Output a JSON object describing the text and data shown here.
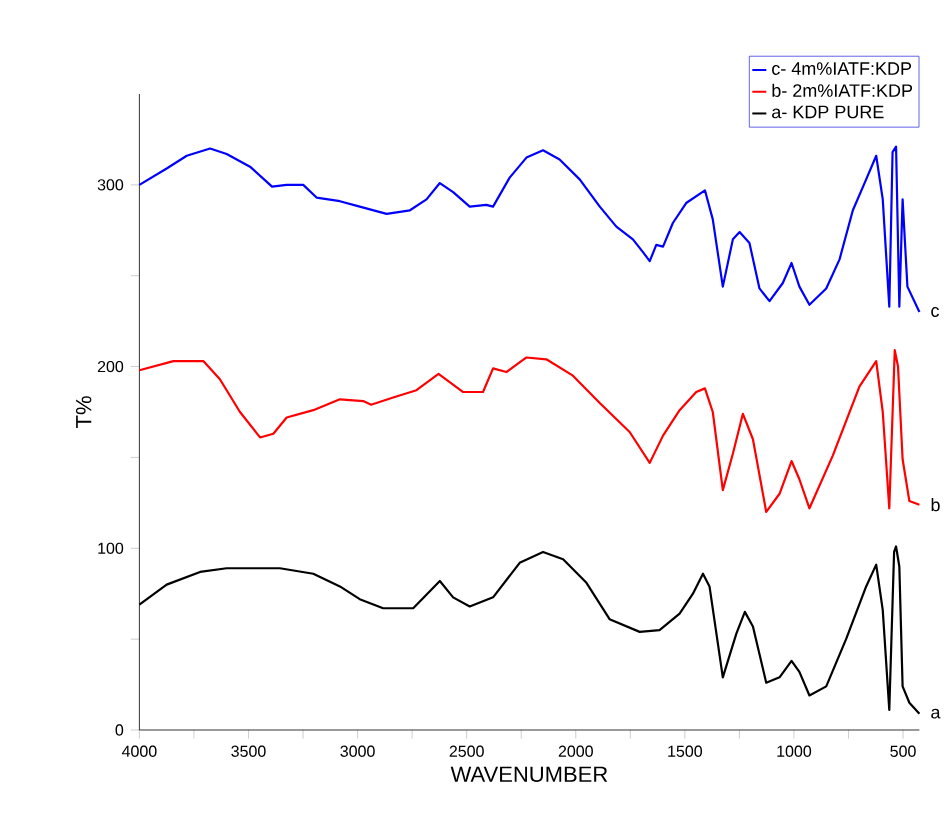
{
  "chart_data": {
    "type": "line",
    "xlabel": "WAVENUMBER",
    "ylabel": "T%",
    "xlim": [
      4000,
      425
    ],
    "ylim": [
      0,
      350
    ],
    "xticks": [
      4000,
      {
        "value": 3750,
        "label": null
      },
      3500,
      {
        "value": 3250,
        "label": null
      },
      3000,
      {
        "value": 2750,
        "label": null
      },
      2500,
      {
        "value": 2250,
        "label": null
      },
      2000,
      {
        "value": 1750,
        "label": null
      },
      1500,
      {
        "value": 1250,
        "label": null
      },
      1000,
      {
        "value": 750,
        "label": null
      },
      500
    ],
    "yticks": [
      0,
      {
        "value": 50,
        "label": null
      },
      100,
      {
        "value": 150,
        "label": null
      },
      200,
      {
        "value": 250,
        "label": null
      },
      300
    ],
    "legend": "top right",
    "annotations": [
      "c",
      "b",
      "a"
    ],
    "series": [
      {
        "name": "c- 4m%IATF:KDP",
        "color": "#0000ff",
        "x": [
          4000,
          3875,
          3783,
          3676,
          3600,
          3493,
          3392,
          3325,
          3249,
          3188,
          3081,
          2990,
          2867,
          2760,
          2684,
          2623,
          2562,
          2486,
          2410,
          2379,
          2303,
          2226,
          2150,
          2074,
          1982,
          1890,
          1814,
          1738,
          1692,
          1661,
          1631,
          1600,
          1555,
          1494,
          1408,
          1372,
          1326,
          1280,
          1249,
          1204,
          1158,
          1112,
          1051,
          1011,
          975,
          929,
          852,
          791,
          730,
          669,
          623,
          593,
          563,
          548,
          532,
          517,
          502,
          480,
          425
        ],
        "values": [
          300,
          309,
          316,
          320,
          317,
          310,
          299,
          300,
          300,
          293,
          291,
          288,
          284,
          286,
          292,
          301,
          296,
          288,
          289,
          288,
          304,
          315,
          319,
          314,
          303,
          288,
          277,
          270,
          263,
          258,
          267,
          266,
          279,
          290,
          297,
          281,
          244,
          270,
          274,
          268,
          243,
          236,
          246,
          257,
          244,
          234,
          243,
          259,
          286,
          303,
          316,
          292,
          233,
          318,
          321,
          233,
          292,
          244,
          230
        ]
      },
      {
        "name": "b- 2m%IATF:KDP",
        "color": "#ff0000",
        "x": [
          4000,
          3844,
          3707,
          3631,
          3539,
          3447,
          3386,
          3325,
          3203,
          3081,
          2974,
          2938,
          2837,
          2730,
          2629,
          2516,
          2425,
          2379,
          2318,
          2226,
          2135,
          2013,
          1890,
          1753,
          1661,
          1600,
          1524,
          1448,
          1408,
          1372,
          1326,
          1280,
          1234,
          1188,
          1127,
          1066,
          1011,
          975,
          929,
          822,
          700,
          623,
          593,
          563,
          538,
          523,
          502,
          471,
          425
        ],
        "values": [
          198,
          203,
          203,
          193,
          175,
          161,
          163,
          172,
          176,
          182,
          181,
          179,
          183,
          187,
          196,
          186,
          186,
          199,
          197,
          205,
          204,
          195,
          180,
          164,
          147,
          162,
          176,
          186,
          188,
          175,
          132,
          152,
          174,
          160,
          120,
          130,
          148,
          138,
          122,
          151,
          189,
          203,
          175,
          122,
          209,
          200,
          149,
          126,
          124
        ]
      },
      {
        "name": "a- KDP PURE",
        "color": "#000000",
        "x": [
          4000,
          3875,
          3722,
          3600,
          3356,
          3203,
          3081,
          2990,
          2883,
          2745,
          2623,
          2562,
          2486,
          2379,
          2257,
          2150,
          2058,
          1951,
          1845,
          1707,
          1616,
          1524,
          1463,
          1417,
          1387,
          1326,
          1264,
          1225,
          1188,
          1127,
          1066,
          1011,
          975,
          929,
          852,
          761,
          669,
          623,
          593,
          563,
          541,
          532,
          517,
          502,
          471,
          425
        ],
        "values": [
          69,
          80,
          87,
          89,
          89,
          86,
          79,
          72,
          67,
          67,
          82,
          73,
          68,
          73,
          92,
          98,
          94,
          81,
          61,
          54,
          55,
          64,
          75,
          86,
          79,
          29,
          53,
          65,
          57,
          26,
          29,
          38,
          32,
          19,
          24,
          50,
          79,
          91,
          66,
          11,
          98,
          101,
          90,
          24,
          15,
          9
        ]
      }
    ]
  }
}
